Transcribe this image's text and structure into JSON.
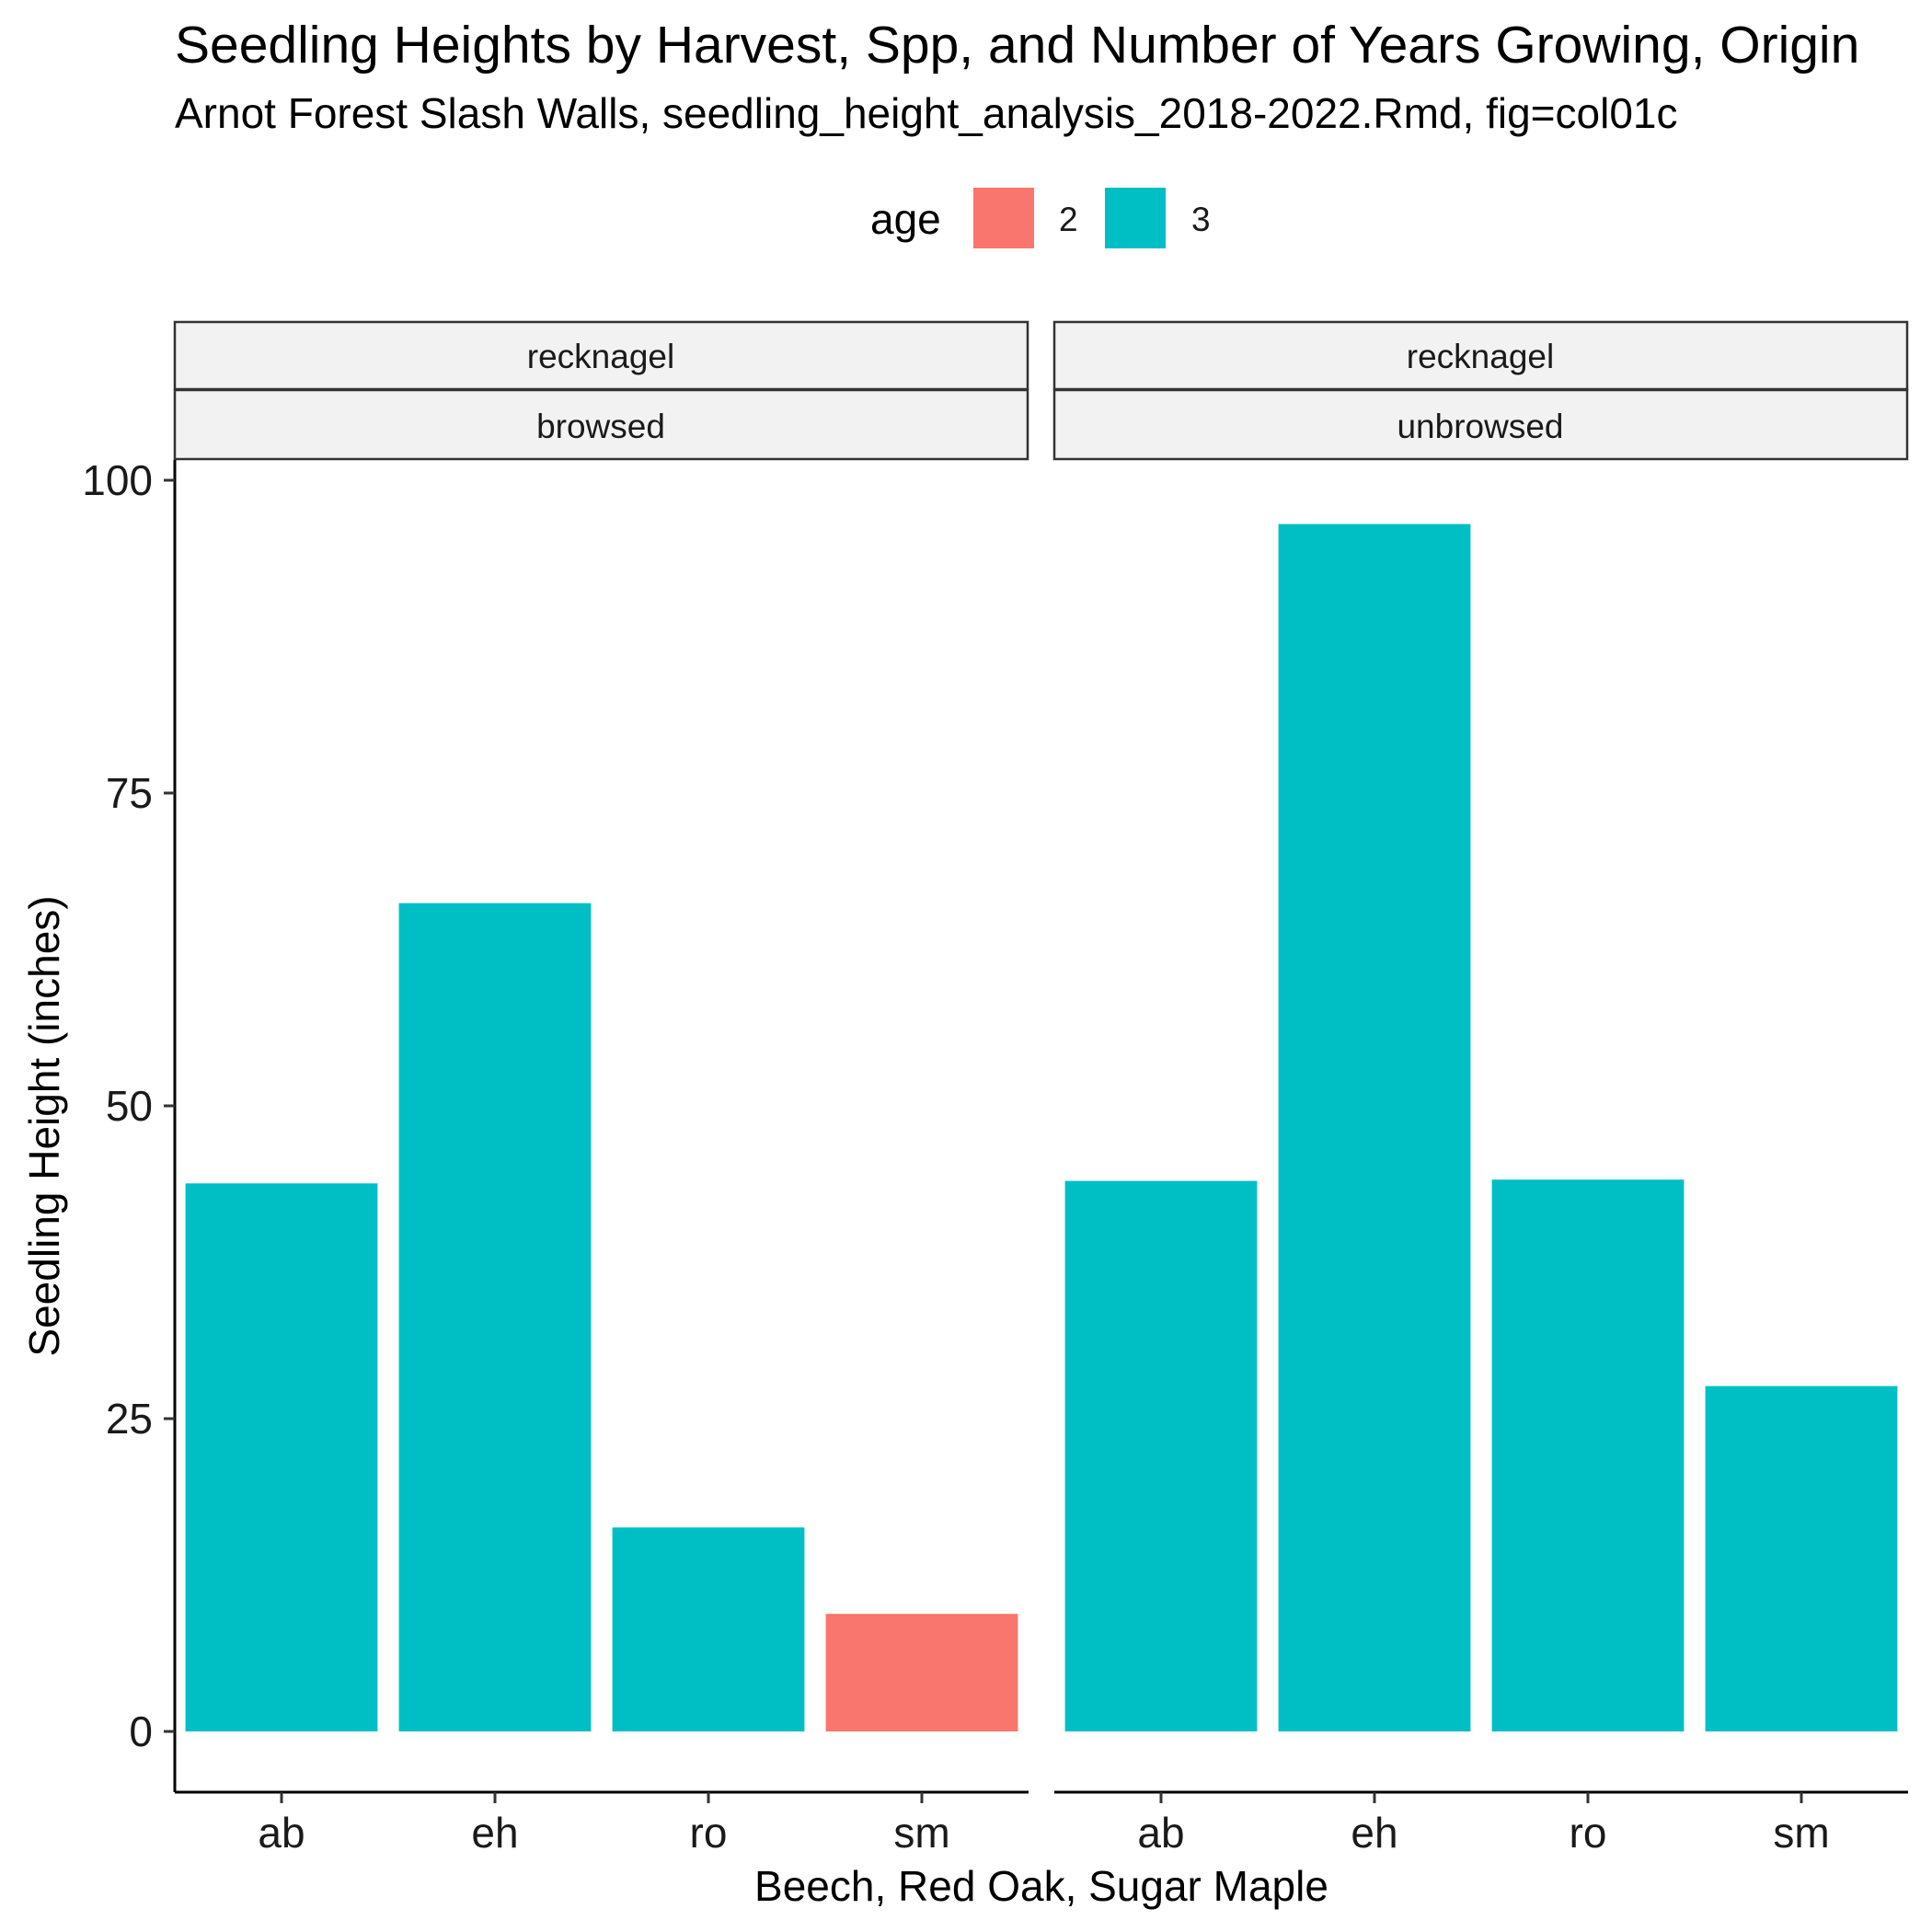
{
  "chart_data": {
    "type": "bar",
    "title": "Seedling Heights by Harvest, Spp, and Number of Years Growing, Origin",
    "subtitle": "Arnot Forest Slash Walls, seedling_height_analysis_2018-2022.Rmd, fig=col01c",
    "xlabel": "Beech, Red Oak, Sugar Maple",
    "ylabel": "Seedling Height (inches)",
    "ylim": [
      -5,
      101.5
    ],
    "yticks": [
      0,
      25,
      50,
      75,
      100
    ],
    "grid": false,
    "legend": {
      "title": "age",
      "placement": "top",
      "items": [
        {
          "label": "2",
          "color": "#F8766D"
        },
        {
          "label": "3",
          "color": "#00BFC4"
        }
      ]
    },
    "categories": [
      "ab",
      "eh",
      "ro",
      "sm"
    ],
    "facets": [
      {
        "strip_top": "recknagel",
        "strip_bottom": "browsed",
        "values": [
          43.8,
          66.2,
          16.3,
          9.4
        ],
        "age": [
          "3",
          "3",
          "3",
          "2"
        ]
      },
      {
        "strip_top": "recknagel",
        "strip_bottom": "unbrowsed",
        "values": [
          44.0,
          96.5,
          44.1,
          27.6
        ],
        "age": [
          "3",
          "3",
          "3",
          "3"
        ]
      }
    ]
  }
}
